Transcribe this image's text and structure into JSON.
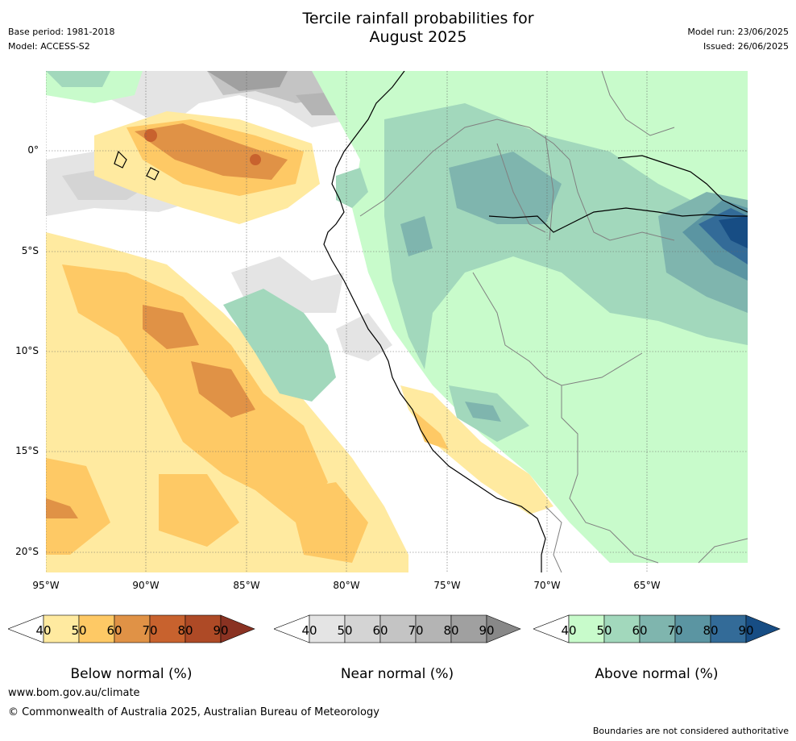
{
  "header": {
    "title_line1": "Tercile rainfall probabilities for",
    "title_line2": "August 2025",
    "base_period": "Base period: 1981-2018",
    "model": "Model: ACCESS-S2",
    "model_run": "Model run: 23/06/2025",
    "issued": "Issued: 26/06/2025"
  },
  "map": {
    "lat_labels": [
      "0°",
      "5°S",
      "10°S",
      "15°S",
      "20°S"
    ],
    "lon_labels": [
      "95°W",
      "90°W",
      "85°W",
      "80°W",
      "75°W",
      "70°W",
      "65°W"
    ],
    "colors": {
      "below": [
        "#ffeaa0",
        "#fec965",
        "#e09246",
        "#c8622e",
        "#ae4a26",
        "#8a3222"
      ],
      "near": [
        "#e4e4e4",
        "#d4d4d4",
        "#c4c4c4",
        "#b4b4b4",
        "#a0a0a0",
        "#888888"
      ],
      "above": [
        "#c8fbcb",
        "#a2d8bc",
        "#7fb5ae",
        "#5b95a2",
        "#336b98",
        "#174d84"
      ],
      "land_outline": "#000000",
      "border": "#808080",
      "grid": "#666666"
    }
  },
  "colorbars": [
    {
      "id": "below",
      "ticks": [
        "40",
        "50",
        "60",
        "70",
        "80",
        "90"
      ],
      "label": "Below normal (%)"
    },
    {
      "id": "near",
      "ticks": [
        "40",
        "50",
        "60",
        "70",
        "80",
        "90"
      ],
      "label": "Near normal (%)"
    },
    {
      "id": "above",
      "ticks": [
        "40",
        "50",
        "60",
        "70",
        "80",
        "90"
      ],
      "label": "Above normal (%)"
    }
  ],
  "footer": {
    "website": "www.bom.gov.au/climate",
    "copyright": "© Commonwealth of Australia 2025, Australian Bureau of Meteorology",
    "disclaimer": "Boundaries are not considered authoritative"
  }
}
